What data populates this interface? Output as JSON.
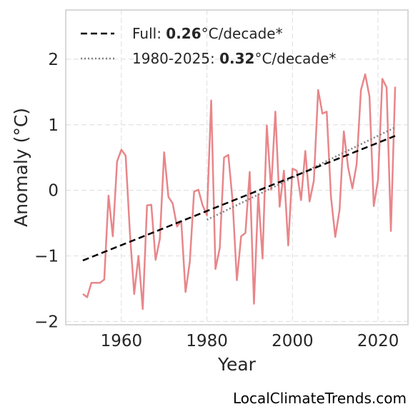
{
  "chart_data": {
    "type": "line",
    "xlabel": "Year",
    "ylabel": "Anomaly (°C)",
    "xlim": [
      1947,
      2027
    ],
    "ylim": [
      -2.05,
      2.75
    ],
    "xticks": [
      1960,
      1980,
      2000,
      2020
    ],
    "yticks": [
      -2,
      -1,
      0,
      1,
      2
    ],
    "ytick_labels": [
      "−2",
      "−1",
      "0",
      "1",
      "2"
    ],
    "grid": true,
    "legend_position": "top-left",
    "legend": [
      {
        "prefix": "Full: ",
        "value": "0.26",
        "suffix": "°C/decade*",
        "style": "dashed",
        "color": "#000000"
      },
      {
        "prefix": "1980-2025: ",
        "value": "0.32",
        "suffix": "°C/decade*",
        "style": "dotted",
        "color": "#808080"
      }
    ],
    "series": [
      {
        "color": "#e8868a",
        "x": [
          1951,
          1952,
          1953,
          1954,
          1955,
          1956,
          1957,
          1958,
          1959,
          1960,
          1961,
          1962,
          1963,
          1964,
          1965,
          1966,
          1967,
          1968,
          1969,
          1970,
          1971,
          1972,
          1973,
          1974,
          1975,
          1976,
          1977,
          1978,
          1979,
          1980,
          1981,
          1982,
          1983,
          1984,
          1985,
          1986,
          1987,
          1988,
          1989,
          1990,
          1991,
          1992,
          1993,
          1994,
          1995,
          1996,
          1997,
          1998,
          1999,
          2000,
          2001,
          2002,
          2003,
          2004,
          2005,
          2006,
          2007,
          2008,
          2009,
          2010,
          2011,
          2012,
          2013,
          2014,
          2015,
          2016,
          2017,
          2018,
          2019,
          2020,
          2021,
          2022,
          2023,
          2024
        ],
        "y": [
          -1.58,
          -1.63,
          -1.41,
          -1.41,
          -1.41,
          -1.36,
          -0.08,
          -0.7,
          0.44,
          0.62,
          0.53,
          -0.65,
          -1.58,
          -1.0,
          -1.81,
          -0.23,
          -0.22,
          -1.06,
          -0.74,
          0.58,
          -0.1,
          -0.2,
          -0.55,
          -0.47,
          -1.55,
          -1.09,
          -0.02,
          0.01,
          -0.23,
          -0.38,
          1.37,
          -1.2,
          -0.88,
          0.5,
          0.54,
          -0.16,
          -1.37,
          -0.7,
          -0.65,
          0.28,
          -1.73,
          -0.06,
          -1.04,
          0.99,
          0.01,
          1.2,
          -0.25,
          0.3,
          -0.84,
          0.33,
          0.3,
          -0.15,
          0.6,
          -0.17,
          0.15,
          1.53,
          1.17,
          1.2,
          -0.1,
          -0.71,
          -0.3,
          0.9,
          0.35,
          0.03,
          0.4,
          1.53,
          1.77,
          1.43,
          -0.24,
          0.16,
          1.7,
          1.57,
          -0.62,
          1.58
        ]
      }
    ],
    "trend_full": {
      "x": [
        1951,
        2024
      ],
      "y": [
        -1.07,
        0.83
      ]
    },
    "trend_recent": {
      "x": [
        1980,
        2024
      ],
      "y": [
        -0.45,
        0.96
      ]
    }
  },
  "watermark": "LocalClimateTrends.com"
}
